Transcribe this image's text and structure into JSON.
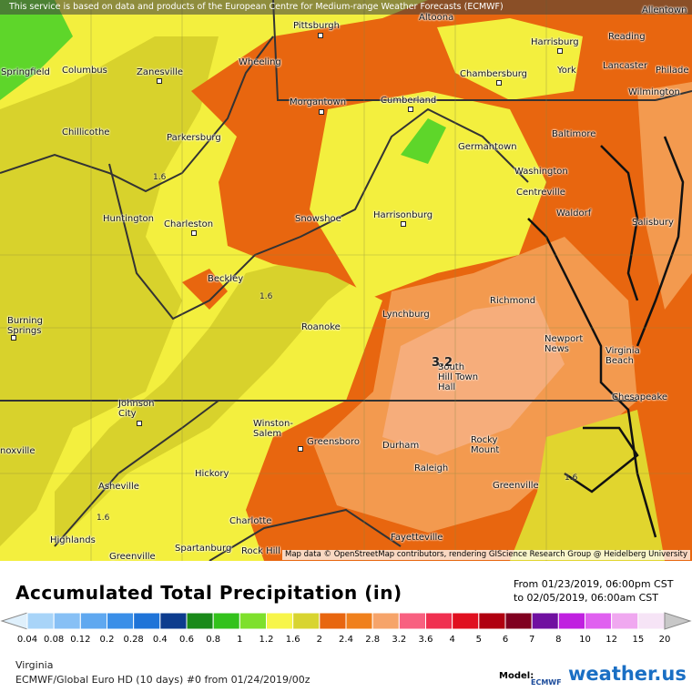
{
  "banner": "This service is based on data and products of the European Centre for Medium-range Weather Forecasts (ECMWF)",
  "attribution": "Map data © OpenStreetMap contributors, rendering GIScience Research Group @ Heidelberg University",
  "cities": [
    "Allentown",
    "Pittsburgh",
    "Altoona",
    "Harrisburg",
    "Reading",
    "Springfield",
    "Columbus",
    "Zanesville",
    "Wheeling",
    "Chambersburg",
    "York",
    "Lancaster",
    "Philade",
    "Wilmington",
    "Morgantown",
    "Cumberland",
    "Baltimore",
    "Chillicothe",
    "Parkersburg",
    "Germantown",
    "Washington",
    "Centreville",
    "Huntington",
    "Charleston",
    "Snowshoe",
    "Harrisonburg",
    "Waldorf",
    "Salisbury",
    "Beckley",
    "Richmond",
    "Lynchburg",
    "Burning Springs",
    "Roanoke",
    "Newport News",
    "Virginia Beach",
    "South Hill Town Hall",
    "Chesapeake",
    "Johnson City",
    "Winston-Salem",
    "Greensboro",
    "Durham",
    "Rocky Mount",
    "noxville",
    "Raleigh",
    "Asheville",
    "Hickory",
    "Greenville",
    "Charlotte",
    "Fayetteville",
    "Highlands",
    "Greenville",
    "Spartanburg",
    "Rock Hill"
  ],
  "contour_labels": [
    1.6,
    1.6,
    3.2,
    1.6,
    1.6
  ],
  "legend": {
    "title": "Accumulated Total Precipitation (in)",
    "from": "From 01/23/2019, 06:00pm CST",
    "to": "to 02/05/2019, 06:00am CST",
    "values": [
      0.04,
      0.08,
      0.12,
      0.2,
      0.28,
      0.4,
      0.6,
      0.8,
      1,
      1.2,
      1.6,
      2,
      2.4,
      2.8,
      3.2,
      3.6,
      4,
      5,
      6,
      7,
      8,
      10,
      12,
      15,
      20
    ],
    "colors": [
      "#dff0fc",
      "#a8d4f8",
      "#87c0f5",
      "#5fa8f0",
      "#3a8fe8",
      "#1f74d8",
      "#0d3c8e",
      "#1a8a1a",
      "#33c21c",
      "#7ee02c",
      "#f7f54a",
      "#d8d430",
      "#e8660f",
      "#f0801c",
      "#f6a46a",
      "#f86080",
      "#f03050",
      "#e01020",
      "#b00010",
      "#800020",
      "#7010a0",
      "#c020e0",
      "#e060f0",
      "#f0a8f0",
      "#f6e4f6",
      "#c8c8c8"
    ]
  },
  "footer": {
    "region": "Virginia",
    "model_run": "ECMWF/Global Euro HD (10 days) #0 from 01/24/2019/00z",
    "model_label": "Model:",
    "model_name": "ECMWF",
    "brand": "weather.us"
  }
}
